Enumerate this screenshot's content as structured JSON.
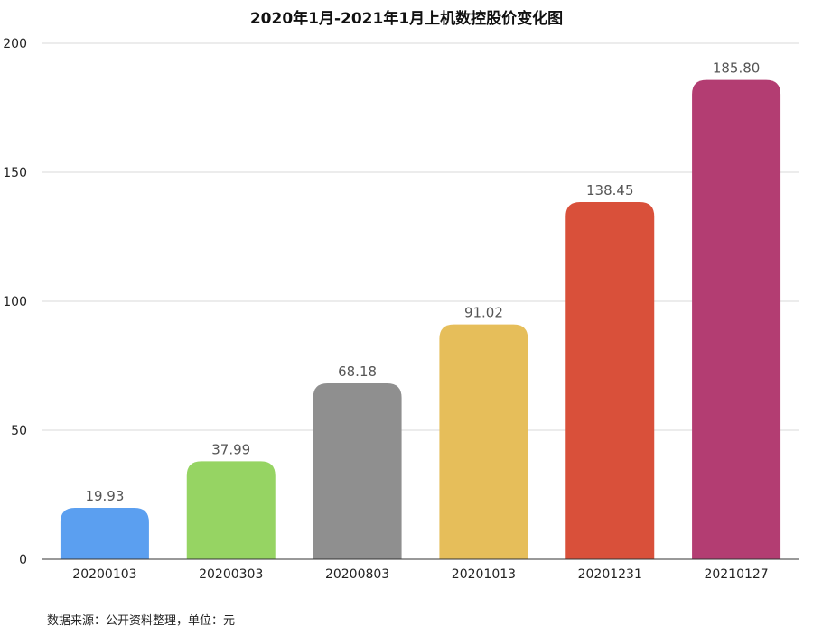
{
  "chart_data": {
    "type": "bar",
    "title": "2020年1月-2021年1月上机数控股价变化图",
    "categories": [
      "20200103",
      "20200303",
      "20200803",
      "20201013",
      "20201231",
      "20210127"
    ],
    "values": [
      19.93,
      37.99,
      68.18,
      91.02,
      138.45,
      185.8
    ],
    "value_labels": [
      "19.93",
      "37.99",
      "68.18",
      "91.02",
      "138.45",
      "185.80"
    ],
    "colors": [
      "#5b9ff0",
      "#96d463",
      "#8f8f8f",
      "#e6be5a",
      "#d9503a",
      "#b33d72"
    ],
    "ylim": [
      0,
      200
    ],
    "yticks": [
      0,
      50,
      100,
      150,
      200
    ],
    "xlabel": "",
    "ylabel": "",
    "grid": true,
    "legend": "none"
  },
  "footer": {
    "source": "数据来源：公开资料整理，单位：元"
  }
}
